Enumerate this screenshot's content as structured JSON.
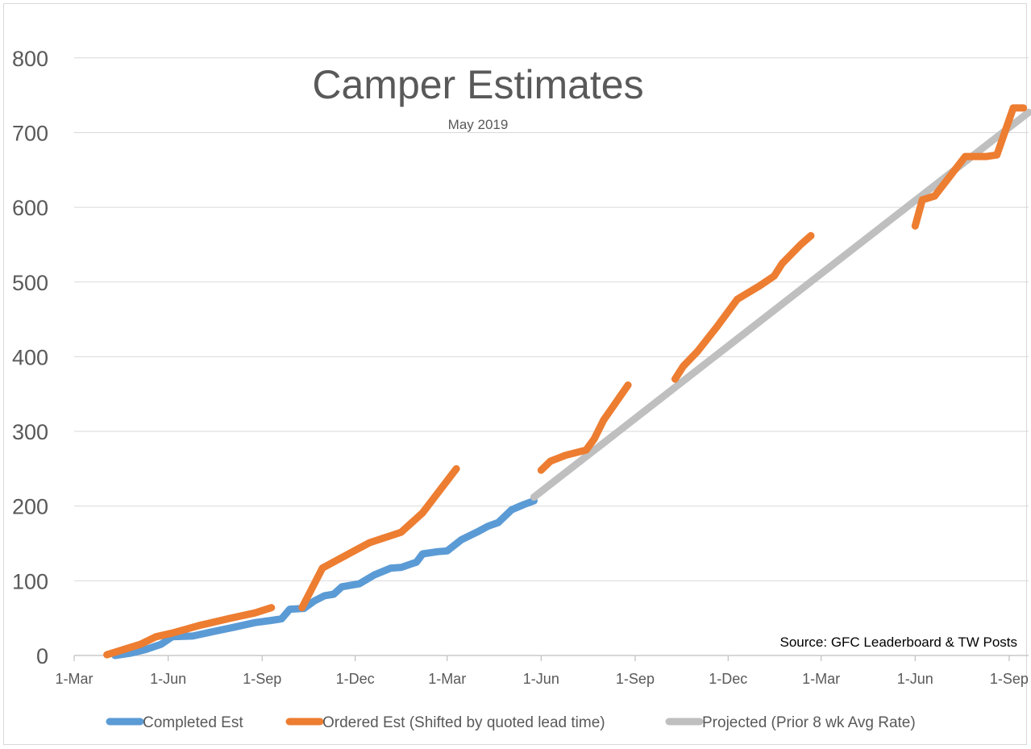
{
  "chart_data": {
    "type": "line",
    "title": "Camper Estimates",
    "subtitle": "May 2019",
    "annotation": "Source: GFC Leaderboard & TW Posts",
    "xlabel": "",
    "ylabel": "",
    "ylim": [
      0,
      850
    ],
    "yticks": [
      0,
      100,
      200,
      300,
      400,
      500,
      600,
      700,
      800
    ],
    "xlim": [
      "2018-03-01",
      "2020-09-20"
    ],
    "xticks": [
      "2018-03-01",
      "2018-06-01",
      "2018-09-01",
      "2018-12-01",
      "2019-03-01",
      "2019-06-01",
      "2019-09-01",
      "2019-12-01",
      "2020-03-01",
      "2020-06-01",
      "2020-09-01"
    ],
    "xtick_labels": [
      "1-Mar",
      "1-Jun",
      "1-Sep",
      "1-Dec",
      "1-Mar",
      "1-Jun",
      "1-Sep",
      "1-Dec",
      "1-Mar",
      "1-Jun",
      "1-Sep"
    ],
    "grid": true,
    "legend_position": "bottom",
    "series": [
      {
        "name": "Completed Est",
        "color": "#5b9bd5",
        "segments": [
          [
            [
              "2018-04-10",
              0
            ],
            [
              "2018-04-25",
              3
            ],
            [
              "2018-05-10",
              8
            ],
            [
              "2018-05-25",
              15
            ],
            [
              "2018-06-05",
              25
            ],
            [
              "2018-06-25",
              26
            ],
            [
              "2018-07-15",
              32
            ],
            [
              "2018-08-05",
              38
            ],
            [
              "2018-08-25",
              44
            ],
            [
              "2018-09-10",
              47
            ],
            [
              "2018-09-20",
              49
            ],
            [
              "2018-09-28",
              62
            ],
            [
              "2018-10-12",
              63
            ],
            [
              "2018-10-22",
              73
            ],
            [
              "2018-11-01",
              80
            ],
            [
              "2018-11-10",
              82
            ],
            [
              "2018-11-18",
              92
            ],
            [
              "2018-12-05",
              96
            ],
            [
              "2018-12-20",
              108
            ],
            [
              "2019-01-05",
              117
            ],
            [
              "2019-01-15",
              118
            ],
            [
              "2019-01-30",
              125
            ],
            [
              "2019-02-05",
              136
            ],
            [
              "2019-02-20",
              139
            ],
            [
              "2019-03-01",
              140
            ],
            [
              "2019-03-15",
              155
            ],
            [
              "2019-03-30",
              165
            ],
            [
              "2019-04-10",
              173
            ],
            [
              "2019-04-20",
              178
            ],
            [
              "2019-05-03",
              195
            ],
            [
              "2019-05-15",
              202
            ],
            [
              "2019-05-25",
              207
            ]
          ]
        ]
      },
      {
        "name": "Ordered Est (Shifted by quoted lead time)",
        "color": "#ed7d31",
        "segments": [
          [
            [
              "2018-04-02",
              1
            ],
            [
              "2018-05-05",
              15
            ],
            [
              "2018-05-20",
              25
            ],
            [
              "2018-06-05",
              30
            ],
            [
              "2018-07-01",
              40
            ],
            [
              "2018-08-01",
              50
            ],
            [
              "2018-08-25",
              57
            ],
            [
              "2018-09-10",
              64
            ]
          ],
          [
            [
              "2018-10-10",
              64
            ],
            [
              "2018-10-30",
              117
            ],
            [
              "2018-11-30",
              140
            ],
            [
              "2018-12-15",
              151
            ],
            [
              "2019-01-15",
              165
            ],
            [
              "2019-02-05",
              191
            ],
            [
              "2019-03-10",
              250
            ]
          ],
          [
            [
              "2019-06-01",
              248
            ],
            [
              "2019-06-10",
              260
            ],
            [
              "2019-06-25",
              268
            ],
            [
              "2019-07-15",
              275
            ],
            [
              "2019-07-23",
              290
            ],
            [
              "2019-08-01",
              315
            ],
            [
              "2019-08-25",
              362
            ]
          ],
          [
            [
              "2019-10-10",
              370
            ],
            [
              "2019-10-18",
              387
            ],
            [
              "2019-11-01",
              407
            ],
            [
              "2019-11-20",
              440
            ],
            [
              "2019-12-10",
              477
            ],
            [
              "2020-01-01",
              495
            ],
            [
              "2020-01-15",
              508
            ],
            [
              "2020-01-23",
              525
            ],
            [
              "2020-02-10",
              550
            ],
            [
              "2020-02-20",
              562
            ]
          ],
          [
            [
              "2020-06-01",
              575
            ],
            [
              "2020-06-08",
              610
            ],
            [
              "2020-06-20",
              615
            ],
            [
              "2020-07-20",
              668
            ],
            [
              "2020-08-10",
              668
            ],
            [
              "2020-08-20",
              670
            ],
            [
              "2020-09-05",
              733
            ],
            [
              "2020-09-15",
              733
            ]
          ]
        ]
      },
      {
        "name": "Projected (Prior 8 wk Avg Rate)",
        "color": "#bfbfbf",
        "segments": [
          [
            [
              "2019-05-25",
              212
            ],
            [
              "2020-09-20",
              727
            ]
          ]
        ]
      }
    ]
  }
}
